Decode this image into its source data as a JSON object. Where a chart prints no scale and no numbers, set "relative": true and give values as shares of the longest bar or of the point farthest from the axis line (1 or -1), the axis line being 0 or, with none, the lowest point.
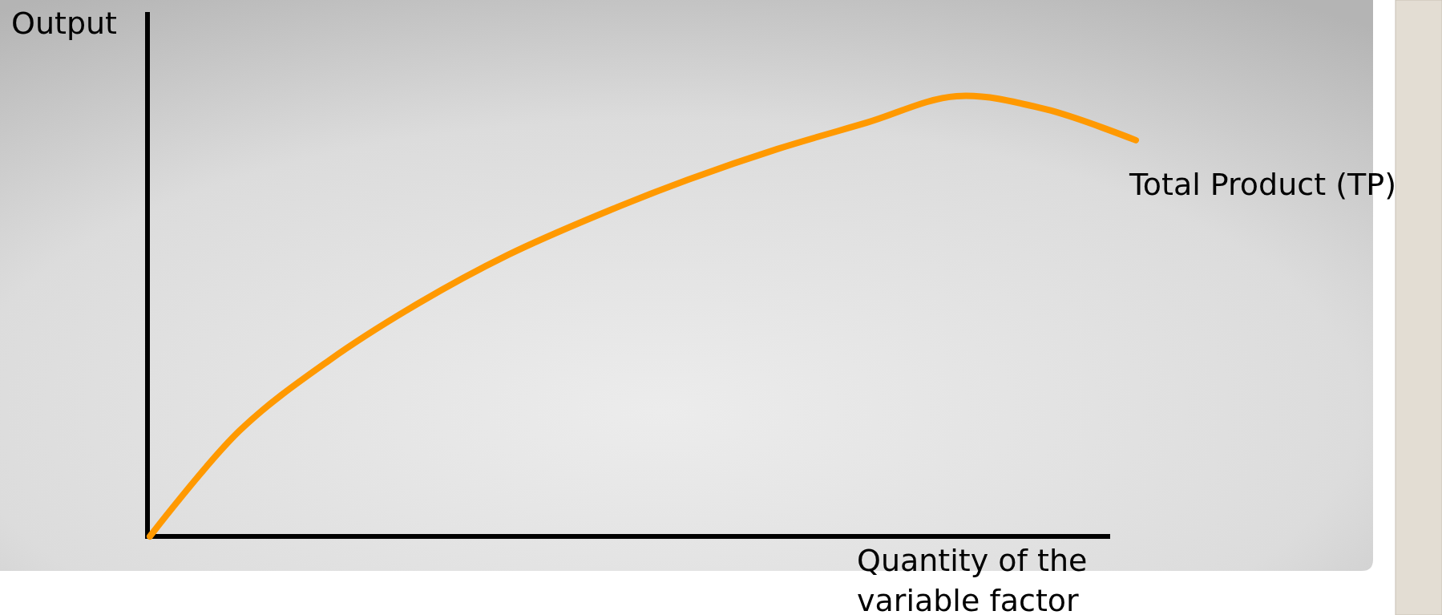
{
  "chart_data": {
    "type": "line",
    "relative": true,
    "ylabel": "Output",
    "xlabel": "Quantity of the\nvariable factor",
    "categories": [
      null,
      null,
      null,
      null,
      null,
      null,
      null,
      null,
      null,
      null,
      null,
      null
    ],
    "series": [
      {
        "name": "Total Product (TP)",
        "color": "#ff9900",
        "values": [
          0,
          0.24,
          0.4,
          0.53,
          0.64,
          0.73,
          0.81,
          0.88,
          0.94,
          1,
          0.97,
          0.9
        ]
      }
    ]
  }
}
